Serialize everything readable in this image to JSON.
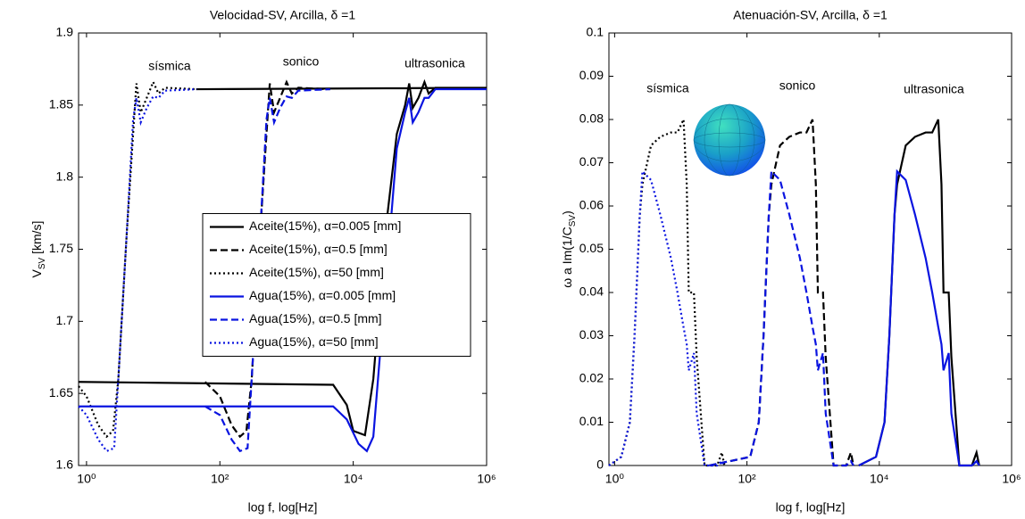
{
  "chart_data": [
    {
      "type": "line",
      "title": "Velocidad-SV, Arcilla, δ =1",
      "xlabel": "log f, log[Hz]",
      "ylabel": {
        "text": "V",
        "sub": "SV",
        "after": " [km/s]"
      },
      "xscale": "log",
      "xlim": [
        0.76,
        1000000
      ],
      "ylim": [
        1.6,
        1.9
      ],
      "xticks": [
        {
          "value": 1,
          "label": "10⁰"
        },
        {
          "value": 100,
          "label": "10²"
        },
        {
          "value": 10000,
          "label": "10⁴"
        },
        {
          "value": 1000000,
          "label": "10⁶"
        }
      ],
      "yticks": [
        1.6,
        1.65,
        1.7,
        1.75,
        1.8,
        1.85,
        1.9
      ],
      "legend": "center right",
      "annotations": [
        "sísmica",
        "sonico",
        "ultrasonica"
      ],
      "series": [
        {
          "name": "Aceite(15%), α=0.005 [mm]",
          "color": "#000000",
          "dash": "solid",
          "x": [
            0.76,
            5000,
            8000,
            10000,
            15000,
            20000,
            30000,
            45000,
            60000,
            69000,
            78000,
            95000,
            117000,
            135000,
            170000,
            1000000,
            null,
            44,
            1000000
          ],
          "values": [
            1.658,
            1.656,
            1.642,
            1.624,
            1.621,
            1.66,
            1.76,
            1.83,
            1.85,
            1.865,
            1.848,
            1.855,
            1.866,
            1.858,
            1.862,
            1.862,
            null,
            1.861,
            1.862
          ]
        },
        {
          "name": "Aceite(15%), α=0.5 [mm]",
          "color": "#000000",
          "dash": "dashed",
          "x": [
            60,
            100,
            150,
            200,
            250,
            300,
            400,
            500,
            560,
            650,
            800,
            1000,
            1200,
            1500,
            4500
          ],
          "values": [
            1.658,
            1.648,
            1.628,
            1.62,
            1.624,
            1.66,
            1.76,
            1.83,
            1.865,
            1.845,
            1.855,
            1.866,
            1.858,
            1.862,
            1.861
          ]
        },
        {
          "name": "Aceite(15%), α=50 [mm]",
          "color": "#000000",
          "dash": "dotted",
          "x": [
            0.76,
            1,
            1.5,
            2,
            2.5,
            3,
            4,
            5,
            5.6,
            6.5,
            8,
            10,
            12,
            15,
            45
          ],
          "values": [
            1.655,
            1.648,
            1.628,
            1.62,
            1.624,
            1.66,
            1.76,
            1.83,
            1.865,
            1.845,
            1.855,
            1.866,
            1.858,
            1.862,
            1.861
          ]
        },
        {
          "name": "Agua(15%), α=0.005 [mm]",
          "color": "#0a14e0",
          "dash": "solid",
          "x": [
            0.76,
            5000,
            8000,
            12000,
            16000,
            20000,
            30000,
            45000,
            60000,
            69000,
            78000,
            95000,
            117000,
            135000,
            170000,
            1000000
          ],
          "values": [
            1.641,
            1.641,
            1.632,
            1.615,
            1.61,
            1.62,
            1.72,
            1.82,
            1.845,
            1.855,
            1.838,
            1.845,
            1.855,
            1.855,
            1.861,
            1.861
          ]
        },
        {
          "name": "Agua(15%), α=0.5 [mm]",
          "color": "#0a14e0",
          "dash": "dashed",
          "x": [
            60,
            100,
            150,
            200,
            260,
            300,
            400,
            500,
            560,
            650,
            800,
            1000,
            1200,
            1500,
            4500
          ],
          "values": [
            1.641,
            1.635,
            1.618,
            1.61,
            1.612,
            1.66,
            1.76,
            1.84,
            1.855,
            1.838,
            1.848,
            1.856,
            1.855,
            1.86,
            1.861
          ]
        },
        {
          "name": "Agua(15%), α=50 [mm]",
          "color": "#0a14e0",
          "dash": "dotted",
          "x": [
            0.76,
            1,
            1.5,
            2,
            2.6,
            3,
            4,
            5,
            5.6,
            6.5,
            8,
            10,
            12,
            15,
            45
          ],
          "values": [
            1.641,
            1.635,
            1.618,
            1.61,
            1.612,
            1.66,
            1.76,
            1.84,
            1.855,
            1.838,
            1.848,
            1.856,
            1.855,
            1.86,
            1.861
          ]
        }
      ]
    },
    {
      "type": "line",
      "title": "Atenuación-SV, Arcilla, δ =1",
      "xlabel": "log f, log[Hz]",
      "ylabel": {
        "text": "ω a Im(1/C",
        "sub": "SV",
        "after": ")"
      },
      "xscale": "log",
      "xlim": [
        0.82,
        1000000
      ],
      "ylim": [
        0,
        0.1
      ],
      "xticks": [
        {
          "value": 1,
          "label": "10⁰"
        },
        {
          "value": 100,
          "label": "10²"
        },
        {
          "value": 10000,
          "label": "10⁴"
        },
        {
          "value": 1000000,
          "label": "10⁶"
        }
      ],
      "yticks": [
        0,
        0.01,
        0.02,
        0.03,
        0.04,
        0.05,
        0.06,
        0.07,
        0.08,
        0.09,
        0.1
      ],
      "annotations": [
        "sísmica",
        "sonico",
        "ultrasonica"
      ],
      "series": [
        {
          "color": "#000000",
          "dash": "dotted",
          "x": [
            0.82,
            1.26,
            1.7,
            2,
            2.4,
            2.63,
            3.55,
            4.9,
            7.08,
            8.91,
            11,
            12.3,
            13.2,
            15.8,
            17.4,
            22.9,
            35.5,
            41.7,
            45.7
          ],
          "values": [
            0,
            0.002,
            0.01,
            0.03,
            0.058,
            0.065,
            0.074,
            0.076,
            0.077,
            0.077,
            0.08,
            0.065,
            0.04,
            0.04,
            0.025,
            0,
            0,
            0.003,
            0
          ]
        },
        {
          "color": "#000000",
          "dash": "dashed",
          "x": [
            27,
            112,
            151,
            178,
            214,
            234,
            316,
            437,
            631,
            794,
            980,
            1100,
            1180,
            1410,
            1550,
            2040,
            3160,
            3720,
            4070
          ],
          "values": [
            0,
            0.002,
            0.01,
            0.03,
            0.058,
            0.065,
            0.074,
            0.076,
            0.077,
            0.077,
            0.08,
            0.065,
            0.04,
            0.04,
            0.025,
            0,
            0,
            0.003,
            0
          ]
        },
        {
          "color": "#000000",
          "dash": "solid",
          "x": [
            4900,
            8920,
            12000,
            14200,
            17000,
            18600,
            25100,
            34700,
            50100,
            63100,
            77900,
            87100,
            93500,
            112000,
            123000,
            162000,
            251000,
            295000,
            324000
          ],
          "values": [
            0,
            0.002,
            0.01,
            0.03,
            0.058,
            0.065,
            0.074,
            0.076,
            0.077,
            0.077,
            0.08,
            0.065,
            0.04,
            0.04,
            0.025,
            0,
            0,
            0.003,
            0
          ]
        },
        {
          "color": "#0a14e0",
          "dash": "dotted",
          "x": [
            0.82,
            1.26,
            1.7,
            2,
            2.4,
            2.63,
            3.55,
            4.9,
            7.08,
            8.91,
            11,
            12.3,
            13.2,
            15.8,
            17.4,
            22.9,
            35.5,
            41.7,
            45.7
          ],
          "values": [
            0,
            0.002,
            0.01,
            0.03,
            0.058,
            0.068,
            0.066,
            0.058,
            0.048,
            0.04,
            0.032,
            0.028,
            0.022,
            0.026,
            0.012,
            0,
            0,
            0.001,
            0
          ]
        },
        {
          "color": "#0a14e0",
          "dash": "dashed",
          "x": [
            27,
            112,
            151,
            178,
            214,
            234,
            316,
            437,
            631,
            794,
            980,
            1100,
            1180,
            1410,
            1550,
            2040,
            3160,
            3720,
            4070
          ],
          "values": [
            0,
            0.002,
            0.01,
            0.03,
            0.058,
            0.068,
            0.066,
            0.058,
            0.048,
            0.04,
            0.032,
            0.028,
            0.022,
            0.026,
            0.012,
            0,
            0,
            0.001,
            0
          ]
        },
        {
          "color": "#0a14e0",
          "dash": "solid",
          "x": [
            4900,
            8920,
            12000,
            14200,
            17000,
            18600,
            25100,
            34700,
            50100,
            63100,
            77900,
            87100,
            93500,
            112000,
            123000,
            162000,
            251000,
            295000,
            324000
          ],
          "values": [
            0,
            0.002,
            0.01,
            0.03,
            0.058,
            0.068,
            0.066,
            0.058,
            0.048,
            0.04,
            0.032,
            0.028,
            0.022,
            0.026,
            0.012,
            0,
            0,
            0.001,
            0
          ]
        }
      ]
    }
  ]
}
